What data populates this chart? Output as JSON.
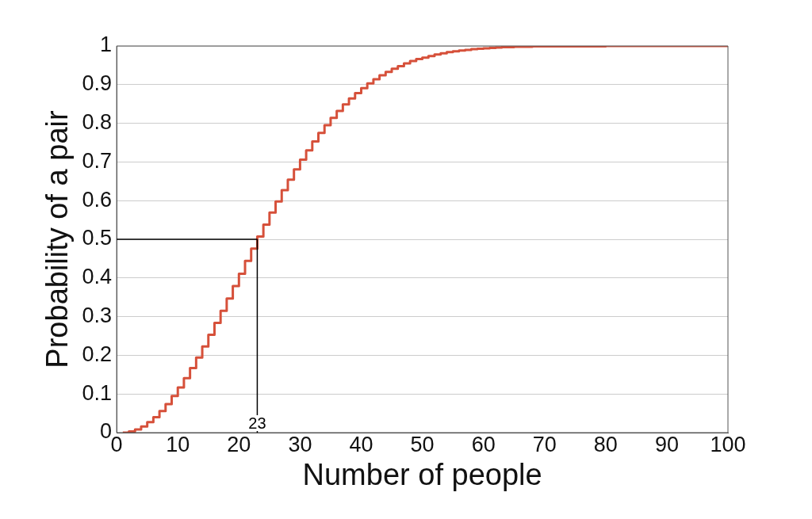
{
  "chart_data": {
    "type": "step",
    "xlabel": "Number of people",
    "ylabel": "Probability of a pair",
    "x": [
      1,
      2,
      3,
      4,
      5,
      6,
      7,
      8,
      9,
      10,
      11,
      12,
      13,
      14,
      15,
      16,
      17,
      18,
      19,
      20,
      21,
      22,
      23,
      24,
      25,
      26,
      27,
      28,
      29,
      30,
      31,
      32,
      33,
      34,
      35,
      36,
      37,
      38,
      39,
      40,
      41,
      42,
      43,
      44,
      45,
      46,
      47,
      48,
      49,
      50,
      51,
      52,
      53,
      54,
      55,
      56,
      57,
      58,
      59,
      60,
      61,
      62,
      63,
      64,
      65,
      66,
      67,
      68,
      69,
      70,
      80,
      90,
      100
    ],
    "series": [
      {
        "color": "#d6503a",
        "values": [
          0,
          0.003,
          0.008,
          0.016,
          0.027,
          0.04,
          0.056,
          0.074,
          0.095,
          0.117,
          0.141,
          0.167,
          0.194,
          0.223,
          0.253,
          0.284,
          0.315,
          0.347,
          0.379,
          0.411,
          0.444,
          0.476,
          0.507,
          0.538,
          0.569,
          0.598,
          0.627,
          0.654,
          0.681,
          0.706,
          0.73,
          0.753,
          0.775,
          0.795,
          0.814,
          0.832,
          0.849,
          0.864,
          0.878,
          0.891,
          0.903,
          0.914,
          0.924,
          0.933,
          0.941,
          0.948,
          0.955,
          0.961,
          0.966,
          0.97,
          0.974,
          0.978,
          0.981,
          0.984,
          0.986,
          0.988,
          0.99,
          0.992,
          0.993,
          0.994,
          0.995,
          0.996,
          0.997,
          0.997,
          0.998,
          0.998,
          0.998,
          0.999,
          0.999,
          0.999,
          1,
          1,
          1
        ]
      }
    ],
    "xlim": [
      0,
      100
    ],
    "xticks": [
      0,
      10,
      20,
      30,
      40,
      50,
      60,
      70,
      80,
      90,
      100
    ],
    "ylim": [
      0,
      1
    ],
    "yticks": [
      0,
      0.1,
      0.2,
      0.3,
      0.4,
      0.5,
      0.6,
      0.7,
      0.8,
      0.9,
      1
    ],
    "grid": "y",
    "legend": false,
    "marker": "none",
    "ref_lines": [
      {
        "axis": "x",
        "value": 23,
        "label": "23",
        "color": "#000000"
      },
      {
        "axis": "y",
        "value": 0.5,
        "color": "#000000"
      }
    ]
  }
}
